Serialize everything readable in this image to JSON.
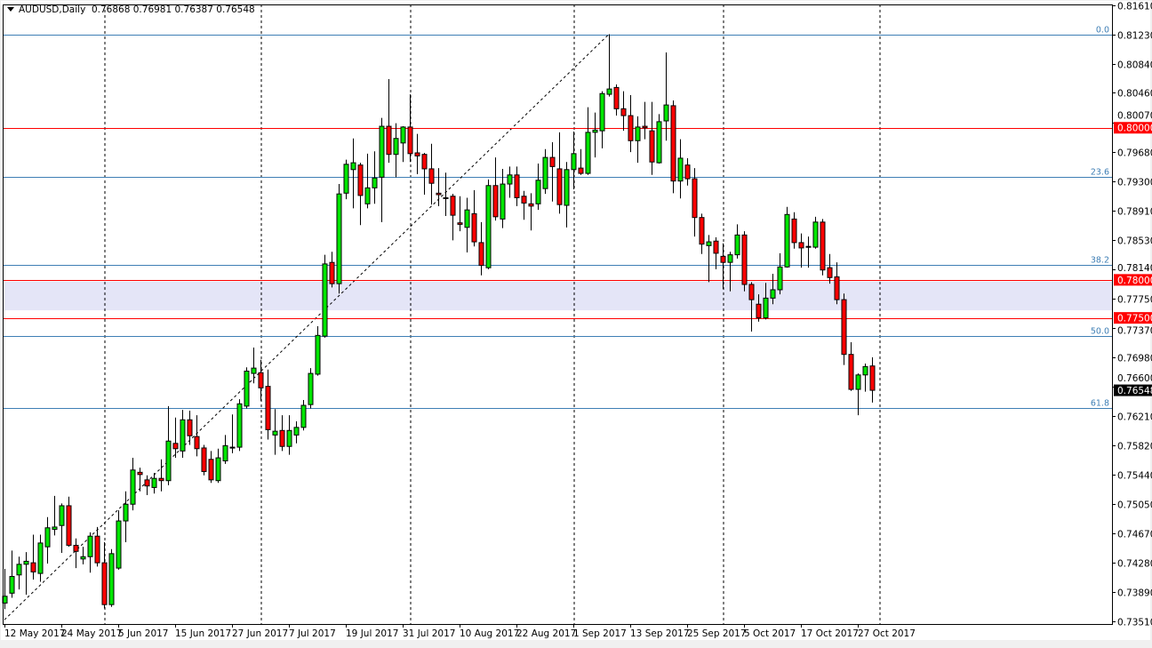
{
  "header": {
    "symbol": "AUDUSD,Daily",
    "ohlc_text": "0.76868 0.76981 0.76387 0.76548"
  },
  "colors": {
    "bull": "#00e600",
    "bear": "#ff0000",
    "fib": "#3f7fb5",
    "level": "#ff0000",
    "zone": "#e4e5f7",
    "current_price_bg": "#000000"
  },
  "chart_data": {
    "type": "candlestick",
    "title": "AUDUSD,Daily",
    "ylim": [
      0.7351,
      0.8161
    ],
    "grid": false,
    "y_ticks": [
      "0.81610",
      "0.81230",
      "0.80840",
      "0.80460",
      "0.80070",
      "0.79680",
      "0.79300",
      "0.78910",
      "0.78530",
      "0.78140",
      "0.77750",
      "0.77370",
      "0.76980",
      "0.76600",
      "0.76210",
      "0.75820",
      "0.75440",
      "0.75050",
      "0.74670",
      "0.74280",
      "0.73890",
      "0.73510"
    ],
    "x_ticks": [
      "12 May 2017",
      "24 May 2017",
      "5 Jun 2017",
      "15 Jun 2017",
      "27 Jun 2017",
      "7 Jul 2017",
      "19 Jul 2017",
      "31 Jul 2017",
      "10 Aug 2017",
      "22 Aug 2017",
      "1 Sep 2017",
      "13 Sep 2017",
      "25 Sep 2017",
      "5 Oct 2017",
      "17 Oct 2017",
      "27 Oct 2017"
    ],
    "ohlc": [
      [
        0.7375,
        0.742,
        0.7367,
        0.7384
      ],
      [
        0.7388,
        0.7444,
        0.7382,
        0.741
      ],
      [
        0.7412,
        0.7436,
        0.7393,
        0.7426
      ],
      [
        0.7426,
        0.7442,
        0.7386,
        0.743
      ],
      [
        0.7428,
        0.7465,
        0.7406,
        0.7416
      ],
      [
        0.7414,
        0.7465,
        0.7403,
        0.7454
      ],
      [
        0.7449,
        0.7488,
        0.7427,
        0.7474
      ],
      [
        0.7472,
        0.7516,
        0.7464,
        0.7475
      ],
      [
        0.7477,
        0.7506,
        0.7441,
        0.7503
      ],
      [
        0.7503,
        0.7515,
        0.7449,
        0.7451
      ],
      [
        0.7451,
        0.746,
        0.7421,
        0.7443
      ],
      [
        0.7433,
        0.7449,
        0.7426,
        0.7436
      ],
      [
        0.7436,
        0.7468,
        0.7415,
        0.7463
      ],
      [
        0.7463,
        0.7475,
        0.7423,
        0.7428
      ],
      [
        0.7428,
        0.7455,
        0.7368,
        0.7373
      ],
      [
        0.7373,
        0.7446,
        0.737,
        0.744
      ],
      [
        0.7421,
        0.7497,
        0.7419,
        0.7483
      ],
      [
        0.7483,
        0.7522,
        0.7455,
        0.7505
      ],
      [
        0.7505,
        0.7566,
        0.7497,
        0.755
      ],
      [
        0.7547,
        0.7553,
        0.7522,
        0.7544
      ],
      [
        0.7537,
        0.7543,
        0.7517,
        0.7529
      ],
      [
        0.7527,
        0.7546,
        0.7519,
        0.7539
      ],
      [
        0.7539,
        0.7564,
        0.7522,
        0.7536
      ],
      [
        0.7536,
        0.7634,
        0.753,
        0.7588
      ],
      [
        0.7585,
        0.7619,
        0.7566,
        0.7578
      ],
      [
        0.7575,
        0.7629,
        0.7566,
        0.7616
      ],
      [
        0.7616,
        0.7628,
        0.7583,
        0.7595
      ],
      [
        0.7594,
        0.7622,
        0.7568,
        0.7578
      ],
      [
        0.7579,
        0.7583,
        0.7543,
        0.7548
      ],
      [
        0.7564,
        0.7575,
        0.7533,
        0.7537
      ],
      [
        0.7536,
        0.7578,
        0.7533,
        0.7566
      ],
      [
        0.7562,
        0.7596,
        0.7558,
        0.7582
      ],
      [
        0.7579,
        0.7623,
        0.7572,
        0.758
      ],
      [
        0.758,
        0.7643,
        0.7575,
        0.7637
      ],
      [
        0.7634,
        0.7685,
        0.7631,
        0.768
      ],
      [
        0.7677,
        0.7711,
        0.7664,
        0.7684
      ],
      [
        0.7678,
        0.7695,
        0.7641,
        0.7658
      ],
      [
        0.766,
        0.7682,
        0.759,
        0.7603
      ],
      [
        0.7596,
        0.763,
        0.757,
        0.7601
      ],
      [
        0.7602,
        0.7622,
        0.7575,
        0.7581
      ],
      [
        0.7581,
        0.7622,
        0.757,
        0.7602
      ],
      [
        0.7596,
        0.7614,
        0.7585,
        0.7606
      ],
      [
        0.7606,
        0.7642,
        0.7602,
        0.7635
      ],
      [
        0.7636,
        0.7684,
        0.7631,
        0.7677
      ],
      [
        0.7676,
        0.7739,
        0.7674,
        0.7727
      ],
      [
        0.7726,
        0.7833,
        0.7724,
        0.7821
      ],
      [
        0.7823,
        0.7837,
        0.779,
        0.7795
      ],
      [
        0.7795,
        0.7926,
        0.7782,
        0.7913
      ],
      [
        0.7914,
        0.7958,
        0.7906,
        0.7952
      ],
      [
        0.7945,
        0.7986,
        0.7894,
        0.7954
      ],
      [
        0.7951,
        0.7954,
        0.7872,
        0.7911
      ],
      [
        0.79,
        0.7966,
        0.7894,
        0.7921
      ],
      [
        0.7921,
        0.7969,
        0.79,
        0.7934
      ],
      [
        0.7935,
        0.8013,
        0.7876,
        0.8002
      ],
      [
        0.8002,
        0.8064,
        0.7954,
        0.7965
      ],
      [
        0.7965,
        0.8006,
        0.7935,
        0.7986
      ],
      [
        0.798,
        0.8002,
        0.7955,
        0.8001
      ],
      [
        0.8001,
        0.8044,
        0.7955,
        0.7966
      ],
      [
        0.7967,
        0.7992,
        0.7939,
        0.7963
      ],
      [
        0.7965,
        0.7967,
        0.7912,
        0.7946
      ],
      [
        0.7946,
        0.7979,
        0.7899,
        0.7927
      ],
      [
        0.7914,
        0.7947,
        0.7897,
        0.7912
      ],
      [
        0.7908,
        0.7941,
        0.7884,
        0.7907
      ],
      [
        0.791,
        0.7913,
        0.7852,
        0.7885
      ],
      [
        0.7875,
        0.791,
        0.7864,
        0.7873
      ],
      [
        0.7869,
        0.7908,
        0.7836,
        0.7892
      ],
      [
        0.7887,
        0.7918,
        0.7844,
        0.785
      ],
      [
        0.7849,
        0.7876,
        0.7806,
        0.7819
      ],
      [
        0.7816,
        0.7932,
        0.7814,
        0.7924
      ],
      [
        0.7924,
        0.7961,
        0.7878,
        0.7883
      ],
      [
        0.788,
        0.7946,
        0.7868,
        0.7926
      ],
      [
        0.7926,
        0.7949,
        0.7908,
        0.7938
      ],
      [
        0.7938,
        0.7949,
        0.7897,
        0.7908
      ],
      [
        0.791,
        0.7917,
        0.7879,
        0.7901
      ],
      [
        0.79,
        0.7914,
        0.7865,
        0.7897
      ],
      [
        0.79,
        0.7953,
        0.7892,
        0.7931
      ],
      [
        0.792,
        0.7972,
        0.7913,
        0.7961
      ],
      [
        0.7961,
        0.7981,
        0.7903,
        0.7949
      ],
      [
        0.7946,
        0.7994,
        0.7887,
        0.7899
      ],
      [
        0.7898,
        0.7955,
        0.7869,
        0.7945
      ],
      [
        0.7945,
        0.7995,
        0.7919,
        0.7966
      ],
      [
        0.7947,
        0.7972,
        0.7938,
        0.794
      ],
      [
        0.794,
        0.8027,
        0.7938,
        0.7994
      ],
      [
        0.7994,
        0.802,
        0.7961,
        0.7997
      ],
      [
        0.7996,
        0.8048,
        0.7973,
        0.8045
      ],
      [
        0.8044,
        0.8123,
        0.8041,
        0.8051
      ],
      [
        0.8053,
        0.8057,
        0.8016,
        0.8025
      ],
      [
        0.8025,
        0.8048,
        0.7996,
        0.8016
      ],
      [
        0.8016,
        0.8043,
        0.7968,
        0.7983
      ],
      [
        0.7983,
        0.8015,
        0.7954,
        0.8001
      ],
      [
        0.8002,
        0.8034,
        0.7985,
        0.8
      ],
      [
        0.7996,
        0.8034,
        0.7938,
        0.7955
      ],
      [
        0.7954,
        0.8018,
        0.7953,
        0.8008
      ],
      [
        0.8009,
        0.8099,
        0.7983,
        0.803
      ],
      [
        0.8029,
        0.8036,
        0.7914,
        0.793
      ],
      [
        0.793,
        0.7985,
        0.7907,
        0.796
      ],
      [
        0.7951,
        0.796,
        0.7924,
        0.7933
      ],
      [
        0.7933,
        0.7947,
        0.7857,
        0.7882
      ],
      [
        0.7882,
        0.7887,
        0.7834,
        0.7847
      ],
      [
        0.7845,
        0.7859,
        0.7797,
        0.785
      ],
      [
        0.7851,
        0.7856,
        0.7814,
        0.7835
      ],
      [
        0.7831,
        0.7848,
        0.7788,
        0.7823
      ],
      [
        0.7823,
        0.7837,
        0.7785,
        0.7833
      ],
      [
        0.7833,
        0.7873,
        0.7828,
        0.7859
      ],
      [
        0.7859,
        0.7864,
        0.7785,
        0.7794
      ],
      [
        0.7794,
        0.7797,
        0.7732,
        0.7774
      ],
      [
        0.7768,
        0.7781,
        0.7745,
        0.775
      ],
      [
        0.775,
        0.7796,
        0.7748,
        0.7776
      ],
      [
        0.7776,
        0.7808,
        0.7768,
        0.7787
      ],
      [
        0.7787,
        0.7835,
        0.7781,
        0.7817
      ],
      [
        0.7817,
        0.7896,
        0.7816,
        0.7886
      ],
      [
        0.788,
        0.7889,
        0.7841,
        0.7849
      ],
      [
        0.7849,
        0.7861,
        0.7816,
        0.7842
      ],
      [
        0.7844,
        0.7857,
        0.7816,
        0.7843
      ],
      [
        0.7843,
        0.7883,
        0.7841,
        0.7876
      ],
      [
        0.7876,
        0.788,
        0.7806,
        0.7813
      ],
      [
        0.7816,
        0.7834,
        0.7795,
        0.7803
      ],
      [
        0.7804,
        0.7823,
        0.7768,
        0.7774
      ],
      [
        0.7774,
        0.7782,
        0.7688,
        0.7702
      ],
      [
        0.7702,
        0.7718,
        0.7654,
        0.7656
      ],
      [
        0.7656,
        0.7677,
        0.7622,
        0.7675
      ],
      [
        0.7675,
        0.769,
        0.7653,
        0.7686
      ],
      [
        0.76868,
        0.76981,
        0.76387,
        0.76548
      ]
    ],
    "horizontal_levels": [
      {
        "price": 0.8,
        "label": "0.80000"
      },
      {
        "price": 0.78,
        "label": "0.78000"
      },
      {
        "price": 0.775,
        "label": "0.77500"
      }
    ],
    "zone": [
      0.776,
      0.7798
    ],
    "fibonacci": [
      {
        "level": "0.0",
        "price": 0.8123
      },
      {
        "level": "23.6",
        "price": 0.7935
      },
      {
        "level": "38.2",
        "price": 0.782
      },
      {
        "level": "50.0",
        "price": 0.7726
      },
      {
        "level": "61.8",
        "price": 0.7631
      }
    ],
    "trendline": {
      "from": [
        0,
        0.7353
      ],
      "to": [
        85,
        0.8123
      ]
    },
    "current_price": "0.76548"
  }
}
